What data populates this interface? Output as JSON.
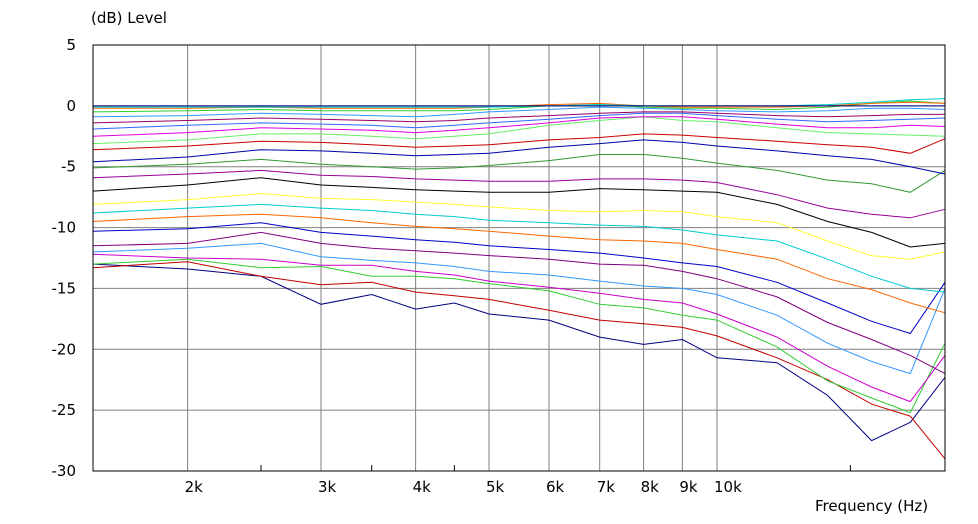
{
  "chart_data": {
    "type": "line",
    "title": "",
    "ylabel": "(dB)  Level",
    "xlabel": "Frequency  (Hz)",
    "x_scale": "log",
    "xlim": [
      1500,
      20000
    ],
    "ylim": [
      -30,
      5
    ],
    "grid": true,
    "x_tick_values": [
      2000,
      3000,
      4000,
      5000,
      6000,
      7000,
      8000,
      9000,
      10000
    ],
    "x_tick_labels": [
      "2k",
      "3k",
      "4k",
      "5k",
      "6k",
      "7k",
      "8k",
      "9k",
      "10k"
    ],
    "y_tick_values": [
      5,
      0,
      -5,
      -10,
      -15,
      -20,
      -25,
      -30
    ],
    "y_tick_labels": [
      "5",
      "0",
      "-5",
      "-10",
      "-15",
      "-20",
      "-25",
      "-30"
    ],
    "x": [
      1500,
      2000,
      2500,
      3000,
      3500,
      4000,
      4500,
      5000,
      6000,
      7000,
      8000,
      9000,
      10000,
      12000,
      14000,
      16000,
      18000,
      20000
    ],
    "series": [
      {
        "color": "#000080",
        "values": [
          -13.0,
          -13.4,
          -14.0,
          -16.3,
          -15.5,
          -16.7,
          -16.2,
          -17.1,
          -17.6,
          -19.0,
          -19.6,
          -19.2,
          -20.7,
          -21.1,
          -23.8,
          -27.5,
          -26.0,
          -22.3
        ]
      },
      {
        "color": "#c00000",
        "values": [
          -13.3,
          -12.8,
          -14.0,
          -14.7,
          -14.5,
          -15.3,
          -15.6,
          -15.9,
          -16.8,
          -17.6,
          -17.9,
          -18.2,
          -18.9,
          -20.7,
          -22.5,
          -24.5,
          -25.5,
          -29.0
        ]
      },
      {
        "color": "#33cc33",
        "values": [
          -13.0,
          -12.6,
          -13.3,
          -13.2,
          -14.0,
          -14.0,
          -14.2,
          -14.6,
          -15.2,
          -16.3,
          -16.6,
          -17.2,
          -17.6,
          -19.8,
          -22.6,
          -24.0,
          -25.2,
          -19.5
        ]
      },
      {
        "color": "#cc00cc",
        "values": [
          -12.2,
          -12.5,
          -12.6,
          -13.1,
          -13.1,
          -13.6,
          -13.9,
          -14.4,
          -14.9,
          -15.4,
          -15.9,
          -16.2,
          -17.1,
          -19.0,
          -21.4,
          -23.1,
          -24.3,
          -20.5
        ]
      },
      {
        "color": "#3399ff",
        "values": [
          -12.0,
          -11.7,
          -11.3,
          -12.4,
          -12.7,
          -12.9,
          -13.2,
          -13.6,
          -13.9,
          -14.4,
          -14.8,
          -15.0,
          -15.5,
          -17.2,
          -19.5,
          -21.0,
          -22.0,
          -15.0
        ]
      },
      {
        "color": "#800080",
        "values": [
          -11.5,
          -11.3,
          -10.4,
          -11.3,
          -11.7,
          -11.9,
          -12.1,
          -12.3,
          -12.6,
          -13.0,
          -13.1,
          -13.6,
          -14.2,
          -15.7,
          -17.8,
          -19.2,
          -20.5,
          -22.0
        ]
      },
      {
        "color": "#0000cc",
        "values": [
          -10.3,
          -10.1,
          -9.6,
          -10.4,
          -10.7,
          -11.0,
          -11.2,
          -11.5,
          -11.8,
          -12.1,
          -12.5,
          -12.9,
          -13.2,
          -14.5,
          -16.2,
          -17.7,
          -18.7,
          -14.5
        ]
      },
      {
        "color": "#ff6600",
        "values": [
          -9.5,
          -9.1,
          -8.9,
          -9.2,
          -9.6,
          -9.9,
          -10.1,
          -10.3,
          -10.7,
          -11.0,
          -11.1,
          -11.3,
          -11.8,
          -12.6,
          -14.2,
          -15.1,
          -16.2,
          -17.0
        ]
      },
      {
        "color": "#00cccc",
        "values": [
          -8.8,
          -8.4,
          -8.1,
          -8.4,
          -8.6,
          -8.9,
          -9.1,
          -9.4,
          -9.6,
          -9.8,
          -9.9,
          -10.2,
          -10.6,
          -11.1,
          -12.6,
          -14.0,
          -15.0,
          -15.3
        ]
      },
      {
        "color": "#ffff33",
        "values": [
          -8.1,
          -7.7,
          -7.2,
          -7.6,
          -7.7,
          -7.9,
          -8.1,
          -8.3,
          -8.6,
          -8.7,
          -8.6,
          -8.7,
          -9.1,
          -9.6,
          -11.1,
          -12.3,
          -12.6,
          -12.0
        ]
      },
      {
        "color": "#000000",
        "values": [
          -7.0,
          -6.5,
          -5.9,
          -6.5,
          -6.7,
          -6.9,
          -7.0,
          -7.1,
          -7.1,
          -6.8,
          -6.9,
          -7.0,
          -7.1,
          -8.1,
          -9.5,
          -10.4,
          -11.6,
          -11.3
        ]
      },
      {
        "color": "#990099",
        "values": [
          -5.9,
          -5.6,
          -5.3,
          -5.7,
          -5.8,
          -6.0,
          -6.1,
          -6.2,
          -6.2,
          -6.0,
          -6.0,
          -6.1,
          -6.3,
          -7.3,
          -8.4,
          -8.9,
          -9.2,
          -8.5
        ]
      },
      {
        "color": "#339933",
        "values": [
          -5.1,
          -4.8,
          -4.4,
          -4.8,
          -5.0,
          -5.2,
          -5.1,
          -4.9,
          -4.5,
          -4.0,
          -4.0,
          -4.3,
          -4.7,
          -5.3,
          -6.1,
          -6.4,
          -7.1,
          -5.3
        ]
      },
      {
        "color": "#0000aa",
        "values": [
          -4.6,
          -4.2,
          -3.6,
          -3.7,
          -3.9,
          -4.1,
          -4.0,
          -3.9,
          -3.4,
          -3.1,
          -2.8,
          -3.0,
          -3.3,
          -3.7,
          -4.1,
          -4.4,
          -5.0,
          -5.6
        ]
      },
      {
        "color": "#cc0000",
        "values": [
          -3.6,
          -3.3,
          -2.9,
          -3.0,
          -3.2,
          -3.4,
          -3.3,
          -3.2,
          -2.8,
          -2.6,
          -2.3,
          -2.4,
          -2.6,
          -2.9,
          -3.2,
          -3.4,
          -3.9,
          -2.7
        ]
      },
      {
        "color": "#66ee66",
        "values": [
          -3.1,
          -2.8,
          -2.3,
          -2.3,
          -2.5,
          -2.7,
          -2.5,
          -2.3,
          -1.6,
          -1.2,
          -0.9,
          -1.2,
          -1.3,
          -1.8,
          -2.2,
          -2.3,
          -2.4,
          -2.5
        ]
      },
      {
        "color": "#dd00dd",
        "values": [
          -2.5,
          -2.2,
          -1.8,
          -1.9,
          -2.0,
          -2.2,
          -2.0,
          -1.8,
          -1.4,
          -1.0,
          -0.9,
          -0.9,
          -1.1,
          -1.5,
          -1.8,
          -1.8,
          -1.6,
          -1.7
        ]
      },
      {
        "color": "#3366ff",
        "values": [
          -1.9,
          -1.6,
          -1.4,
          -1.5,
          -1.6,
          -1.8,
          -1.6,
          -1.4,
          -1.1,
          -0.8,
          -0.6,
          -0.6,
          -0.8,
          -1.1,
          -1.3,
          -1.2,
          -1.1,
          -1.0
        ]
      },
      {
        "color": "#990066",
        "values": [
          -1.4,
          -1.2,
          -1.0,
          -1.1,
          -1.2,
          -1.3,
          -1.2,
          -1.0,
          -0.8,
          -0.6,
          -0.5,
          -0.5,
          -0.6,
          -0.8,
          -0.9,
          -0.8,
          -0.7,
          -0.7
        ]
      },
      {
        "color": "#3399ff",
        "values": [
          -0.9,
          -0.8,
          -0.6,
          -0.7,
          -0.8,
          -0.9,
          -0.7,
          -0.5,
          -0.3,
          -0.1,
          -0.2,
          -0.3,
          -0.4,
          -0.5,
          -0.4,
          -0.2,
          -0.2,
          -0.3
        ]
      },
      {
        "color": "#33cc33",
        "values": [
          -0.5,
          -0.4,
          -0.3,
          -0.4,
          -0.4,
          -0.4,
          -0.4,
          -0.3,
          0.0,
          0.1,
          -0.1,
          -0.2,
          -0.2,
          -0.3,
          -0.1,
          0.2,
          0.4,
          0.2
        ]
      },
      {
        "color": "#ff6600",
        "values": [
          -0.2,
          -0.2,
          -0.1,
          -0.2,
          -0.2,
          -0.2,
          -0.2,
          -0.1,
          0.1,
          0.2,
          0.0,
          -0.1,
          -0.1,
          -0.1,
          0.0,
          0.2,
          0.3,
          0.2
        ]
      },
      {
        "color": "#00cccc",
        "values": [
          -0.1,
          -0.1,
          -0.1,
          -0.1,
          -0.1,
          -0.1,
          -0.1,
          -0.1,
          0.0,
          0.1,
          0.0,
          0.0,
          0.0,
          0.0,
          0.1,
          0.3,
          0.5,
          0.6
        ]
      },
      {
        "color": "#000080",
        "values": [
          0.0,
          0.0,
          0.0,
          0.0,
          0.0,
          0.0,
          0.0,
          0.0,
          0.0,
          0.0,
          0.0,
          0.0,
          0.0,
          0.0,
          0.0,
          0.0,
          0.0,
          0.0
        ]
      }
    ]
  }
}
